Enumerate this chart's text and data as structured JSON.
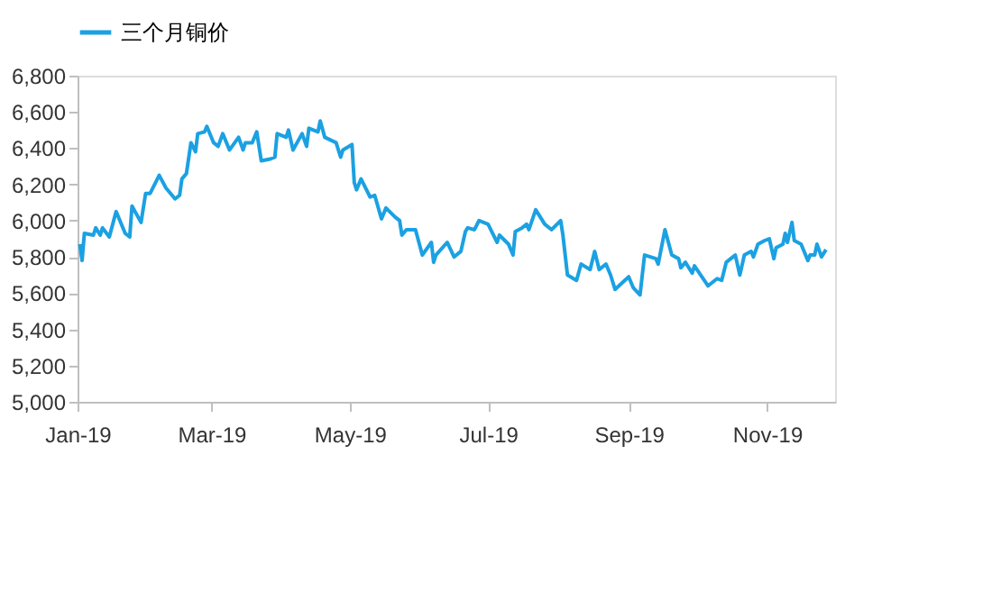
{
  "chart_data": {
    "type": "line",
    "x": [
      "2019-01-02",
      "2019-01-03",
      "2019-01-04",
      "2019-01-08",
      "2019-01-09",
      "2019-01-11",
      "2019-01-12",
      "2019-01-15",
      "2019-01-18",
      "2019-01-22",
      "2019-01-24",
      "2019-01-25",
      "2019-01-29",
      "2019-01-31",
      "2019-02-02",
      "2019-02-06",
      "2019-02-09",
      "2019-02-13",
      "2019-02-15",
      "2019-02-16",
      "2019-02-18",
      "2019-02-20",
      "2019-02-22",
      "2019-02-23",
      "2019-02-26",
      "2019-02-27",
      "2019-03-02",
      "2019-03-04",
      "2019-03-06",
      "2019-03-09",
      "2019-03-13",
      "2019-03-15",
      "2019-03-16",
      "2019-03-19",
      "2019-03-21",
      "2019-03-23",
      "2019-03-27",
      "2019-03-29",
      "2019-03-30",
      "2019-04-03",
      "2019-04-04",
      "2019-04-06",
      "2019-04-10",
      "2019-04-12",
      "2019-04-13",
      "2019-04-17",
      "2019-04-18",
      "2019-04-20",
      "2019-04-25",
      "2019-04-27",
      "2019-04-28",
      "2019-05-02",
      "2019-05-03",
      "2019-05-04",
      "2019-05-06",
      "2019-05-10",
      "2019-05-12",
      "2019-05-15",
      "2019-05-17",
      "2019-05-21",
      "2019-05-23",
      "2019-05-24",
      "2019-05-26",
      "2019-05-30",
      "2019-06-02",
      "2019-06-06",
      "2019-06-07",
      "2019-06-08",
      "2019-06-13",
      "2019-06-16",
      "2019-06-19",
      "2019-06-21",
      "2019-06-22",
      "2019-06-25",
      "2019-06-27",
      "2019-07-01",
      "2019-07-05",
      "2019-07-06",
      "2019-07-10",
      "2019-07-12",
      "2019-07-13",
      "2019-07-16",
      "2019-07-18",
      "2019-07-19",
      "2019-07-22",
      "2019-07-26",
      "2019-07-29",
      "2019-08-02",
      "2019-08-03",
      "2019-08-05",
      "2019-08-09",
      "2019-08-11",
      "2019-08-15",
      "2019-08-17",
      "2019-08-19",
      "2019-08-22",
      "2019-08-24",
      "2019-08-26",
      "2019-09-01",
      "2019-09-03",
      "2019-09-06",
      "2019-09-08",
      "2019-09-13",
      "2019-09-14",
      "2019-09-17",
      "2019-09-20",
      "2019-09-23",
      "2019-09-24",
      "2019-09-26",
      "2019-09-29",
      "2019-09-30",
      "2019-10-06",
      "2019-10-10",
      "2019-10-12",
      "2019-10-14",
      "2019-10-17",
      "2019-10-18",
      "2019-10-20",
      "2019-10-22",
      "2019-10-25",
      "2019-10-26",
      "2019-10-28",
      "2019-10-31",
      "2019-11-02",
      "2019-11-04",
      "2019-11-05",
      "2019-11-08",
      "2019-11-09",
      "2019-11-10",
      "2019-11-12",
      "2019-11-13",
      "2019-11-16",
      "2019-11-19",
      "2019-11-20",
      "2019-11-22",
      "2019-11-23",
      "2019-11-25",
      "2019-11-27"
    ],
    "series": [
      {
        "name": "三个月铜价",
        "color": "#1ba1e2",
        "values": [
          5870,
          5780,
          5930,
          5920,
          5960,
          5920,
          5960,
          5910,
          6050,
          5930,
          5910,
          6080,
          5990,
          6150,
          6150,
          6250,
          6180,
          6120,
          6140,
          6230,
          6260,
          6430,
          6380,
          6480,
          6490,
          6520,
          6430,
          6410,
          6480,
          6390,
          6460,
          6390,
          6430,
          6430,
          6490,
          6330,
          6340,
          6350,
          6480,
          6460,
          6500,
          6390,
          6480,
          6410,
          6510,
          6490,
          6550,
          6460,
          6430,
          6350,
          6390,
          6420,
          6210,
          6170,
          6230,
          6130,
          6140,
          6010,
          6070,
          6020,
          6000,
          5920,
          5950,
          5950,
          5810,
          5880,
          5770,
          5810,
          5880,
          5800,
          5830,
          5940,
          5960,
          5950,
          6000,
          5980,
          5880,
          5920,
          5870,
          5810,
          5940,
          5960,
          5980,
          5950,
          6060,
          5980,
          5950,
          6000,
          5920,
          5700,
          5670,
          5760,
          5730,
          5830,
          5730,
          5760,
          5700,
          5620,
          5690,
          5630,
          5590,
          5810,
          5790,
          5760,
          5950,
          5810,
          5790,
          5740,
          5770,
          5710,
          5750,
          5640,
          5680,
          5670,
          5770,
          5800,
          5810,
          5700,
          5810,
          5830,
          5800,
          5870,
          5890,
          5900,
          5790,
          5850,
          5870,
          5930,
          5880,
          5990,
          5890,
          5870,
          5780,
          5810,
          5810,
          5870,
          5800,
          5840
        ]
      }
    ],
    "xlim": [
      "2019-01-01",
      "2019-12-01"
    ],
    "xticks": [
      {
        "value": "2019-01-01",
        "label": "Jan-19"
      },
      {
        "value": "2019-03-01",
        "label": "Mar-19"
      },
      {
        "value": "2019-05-01",
        "label": "May-19"
      },
      {
        "value": "2019-07-01",
        "label": "Jul-19"
      },
      {
        "value": "2019-09-01",
        "label": "Sep-19"
      },
      {
        "value": "2019-11-01",
        "label": "Nov-19"
      }
    ],
    "ylim": [
      5000,
      6800
    ],
    "yticks": [
      {
        "value": 5000,
        "label": "5,000"
      },
      {
        "value": 5200,
        "label": "5,200"
      },
      {
        "value": 5400,
        "label": "5,400"
      },
      {
        "value": 5600,
        "label": "5,600"
      },
      {
        "value": 5800,
        "label": "5,800"
      },
      {
        "value": 6000,
        "label": "6,000"
      },
      {
        "value": 6200,
        "label": "6,200"
      },
      {
        "value": 6400,
        "label": "6,400"
      },
      {
        "value": 6600,
        "label": "6,600"
      },
      {
        "value": 6800,
        "label": "6,800"
      }
    ],
    "grid": false,
    "legend": "top",
    "marker": "none",
    "line_style": "solid"
  }
}
